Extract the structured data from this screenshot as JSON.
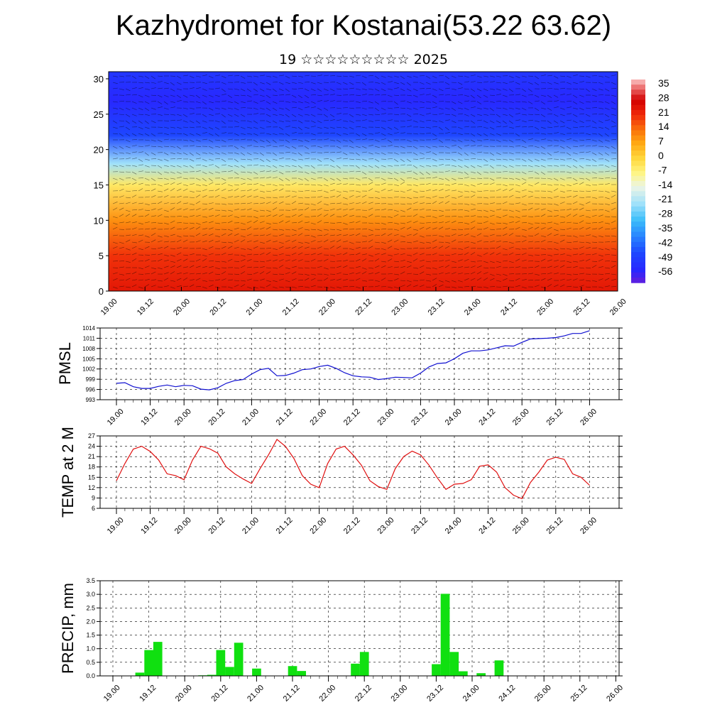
{
  "title": "Kazhydromet for Kostanai(53.22 63.62)",
  "subtitle": "19 ☆☆☆☆☆☆☆☆☆ 2025",
  "time_ticks": [
    "19.00",
    "19.12",
    "20.00",
    "20.12",
    "21.00",
    "21.12",
    "22.00",
    "22.12",
    "23.00",
    "23.12",
    "24.00",
    "24.12",
    "25.00",
    "25.12",
    "26.00"
  ],
  "colorbar": {
    "labels": [
      "35",
      "28",
      "21",
      "14",
      "7",
      "0",
      "-7",
      "-14",
      "-21",
      "-28",
      "-35",
      "-42",
      "-49",
      "-56"
    ]
  },
  "chart_data": [
    {
      "type": "heatmap",
      "title": "",
      "xlabel": "",
      "ylabel": "",
      "x_ticks": [
        "19.00",
        "19.12",
        "20.00",
        "20.12",
        "21.00",
        "21.12",
        "22.00",
        "22.12",
        "23.00",
        "23.12",
        "24.00",
        "24.12",
        "25.00",
        "25.12",
        "26.00"
      ],
      "y_ticks": [
        "0",
        "5",
        "10",
        "15",
        "20",
        "25",
        "30"
      ],
      "ylim": [
        0,
        31
      ],
      "colorbar_range": [
        -60,
        38
      ],
      "colors": {
        "cold": "#2020ff",
        "mid": "#fff8a0",
        "warm": "#e00000"
      },
      "overlay": "wind barbs",
      "values_by_level": [
        {
          "level": 0,
          "value": 24
        },
        {
          "level": 5,
          "value": 20
        },
        {
          "level": 10,
          "value": 10
        },
        {
          "level": 15,
          "value": -4
        },
        {
          "level": 18,
          "value": -22
        },
        {
          "level": 22,
          "value": -46
        },
        {
          "level": 27,
          "value": -54
        },
        {
          "level": 31,
          "value": -50
        }
      ]
    },
    {
      "type": "line",
      "ylabel": "PMSL",
      "xlabel": "",
      "ylim": [
        993,
        1014
      ],
      "y_ticks": [
        "993",
        "996",
        "999",
        "1002",
        "1005",
        "1008",
        "1011",
        "1014"
      ],
      "x_ticks": [
        "19.00",
        "19.12",
        "20.00",
        "20.12",
        "21.00",
        "21.12",
        "22.00",
        "22.12",
        "23.00",
        "23.12",
        "24.00",
        "24.12",
        "25.00",
        "25.12",
        "26.00"
      ],
      "color": "#1010d0",
      "x": [
        0,
        3,
        6,
        9,
        12,
        15,
        18,
        21,
        24,
        27,
        30,
        33,
        36,
        39,
        42,
        45,
        48,
        51,
        54,
        57,
        60,
        63,
        66,
        69,
        72,
        75,
        78,
        81,
        84,
        87,
        90,
        93,
        96,
        99,
        102,
        105,
        108,
        111,
        114,
        117,
        120,
        123,
        126,
        129,
        132,
        135,
        138,
        141,
        144,
        147,
        150,
        153,
        156,
        159,
        162,
        165,
        168
      ],
      "values": [
        997.8,
        998.0,
        996.8,
        996.3,
        996.3,
        996.9,
        997.3,
        996.8,
        997.2,
        997.1,
        996.1,
        995.9,
        996.5,
        997.8,
        998.6,
        998.9,
        1000.5,
        1001.8,
        1002.2,
        1000.0,
        1000.1,
        1000.8,
        1001.8,
        1002.0,
        1002.7,
        1003.1,
        1002.2,
        1000.9,
        1000.0,
        999.7,
        999.6,
        998.9,
        999.2,
        999.6,
        999.5,
        999.4,
        1000.8,
        1002.6,
        1003.6,
        1003.8,
        1005.0,
        1006.6,
        1007.3,
        1007.3,
        1007.6,
        1008.2,
        1008.8,
        1008.7,
        1009.8,
        1010.8,
        1010.9,
        1011.0,
        1011.2,
        1011.7,
        1012.4,
        1012.4,
        1013.2
      ]
    },
    {
      "type": "line",
      "ylabel": "TEMP at 2 M",
      "xlabel": "",
      "ylim": [
        6,
        27
      ],
      "y_ticks": [
        "6",
        "9",
        "12",
        "15",
        "18",
        "21",
        "24",
        "27"
      ],
      "x_ticks": [
        "19.00",
        "19.12",
        "20.00",
        "20.12",
        "21.00",
        "21.12",
        "22.00",
        "22.12",
        "23.00",
        "23.12",
        "24.00",
        "24.12",
        "25.00",
        "25.12",
        "26.00"
      ],
      "color": "#e01010",
      "x": [
        0,
        3,
        6,
        9,
        12,
        15,
        18,
        21,
        24,
        27,
        30,
        33,
        36,
        39,
        42,
        45,
        48,
        51,
        54,
        57,
        60,
        63,
        66,
        69,
        72,
        75,
        78,
        81,
        84,
        87,
        90,
        93,
        96,
        99,
        102,
        105,
        108,
        111,
        114,
        117,
        120,
        123,
        126,
        129,
        132,
        135,
        138,
        141,
        144,
        147,
        150,
        153,
        156,
        159,
        162,
        165,
        168
      ],
      "values": [
        14.0,
        19.0,
        23.2,
        24.0,
        22.5,
        20.0,
        16.0,
        15.5,
        14.3,
        20.0,
        24.0,
        23.3,
        22.0,
        18.0,
        16.0,
        14.5,
        13.2,
        17.5,
        21.5,
        26.0,
        24.0,
        20.5,
        15.5,
        13.0,
        12.0,
        19.0,
        23.2,
        24.0,
        21.5,
        18.5,
        14.0,
        12.3,
        11.5,
        17.5,
        21.0,
        22.6,
        21.5,
        18.5,
        14.8,
        11.5,
        13.0,
        13.2,
        14.3,
        18.2,
        18.6,
        16.5,
        12.0,
        9.8,
        8.8,
        13.5,
        16.5,
        20.0,
        20.8,
        20.2,
        16.0,
        15.0,
        12.7
      ]
    },
    {
      "type": "bar",
      "ylabel": "PRECIP, mm",
      "xlabel": "",
      "ylim": [
        0,
        3.5
      ],
      "y_ticks": [
        "0.0",
        "0.5",
        "1.0",
        "1.5",
        "2.0",
        "2.5",
        "3.0",
        "3.5"
      ],
      "x_ticks": [
        "19.00",
        "19.12",
        "20.00",
        "20.12",
        "21.00",
        "21.12",
        "22.00",
        "22.12",
        "23.00",
        "23.12",
        "24.00",
        "24.12",
        "25.00",
        "25.12",
        "26.00"
      ],
      "color": "#10e010",
      "x": [
        9,
        12,
        15,
        30,
        33,
        36,
        39,
        42,
        48,
        60,
        63,
        81,
        84,
        108,
        111,
        114,
        117,
        123,
        129
      ],
      "values": [
        0.12,
        0.95,
        1.25,
        0.02,
        0.04,
        0.95,
        0.33,
        1.22,
        0.27,
        0.36,
        0.18,
        0.45,
        0.88,
        0.43,
        3.02,
        0.88,
        0.17,
        0.1,
        0.57
      ]
    }
  ]
}
